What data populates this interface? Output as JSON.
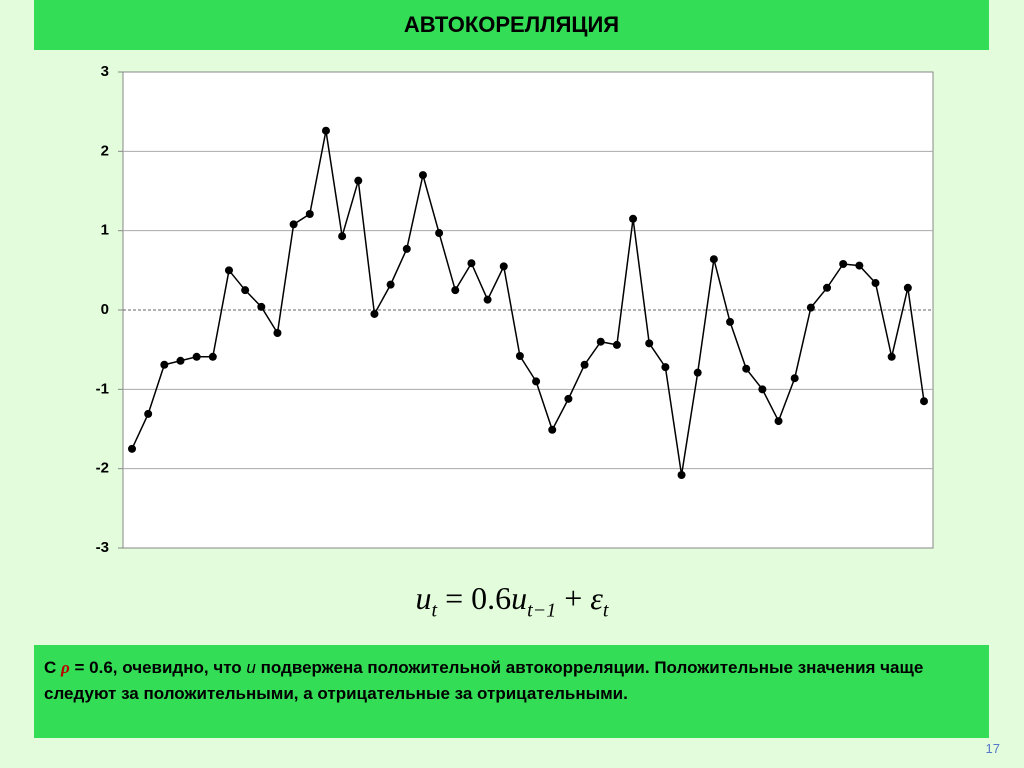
{
  "slide": {
    "title": "АВТОКОРЕЛЛЯЦИЯ",
    "formula": [
      "u",
      "t",
      "= 0.6",
      "u",
      "t−1",
      "+",
      "ε",
      "t"
    ],
    "note": [
      "С",
      "ρ",
      "= 0.6, очевидно, что",
      "u",
      "подвержена положительной автокорреляции. Положительные значения чаще следуют за положительными, а отрицательные за отрицательными."
    ],
    "page_number": "17"
  },
  "chart_data": {
    "type": "line",
    "color": "#000000",
    "grid": true,
    "values": [
      -1.75,
      -1.31,
      -0.69,
      -0.64,
      -0.59,
      -0.59,
      0.5,
      0.25,
      0.04,
      -0.29,
      1.08,
      1.21,
      2.26,
      0.93,
      1.63,
      -0.05,
      0.32,
      0.77,
      1.7,
      0.97,
      0.25,
      0.59,
      0.13,
      0.55,
      -0.58,
      -0.9,
      -1.51,
      -1.12,
      -0.69,
      -0.4,
      -0.44,
      1.15,
      -0.42,
      -0.72,
      -2.08,
      -0.79,
      0.64,
      -0.15,
      -0.74,
      -1.0,
      -1.4,
      -0.86,
      0.03,
      0.28,
      0.58,
      0.56,
      0.34,
      -0.59,
      0.28,
      -1.15
    ],
    "ylim": [
      -3,
      3
    ],
    "yticks": [
      -3,
      -2,
      -1,
      0,
      1,
      2,
      3
    ]
  }
}
